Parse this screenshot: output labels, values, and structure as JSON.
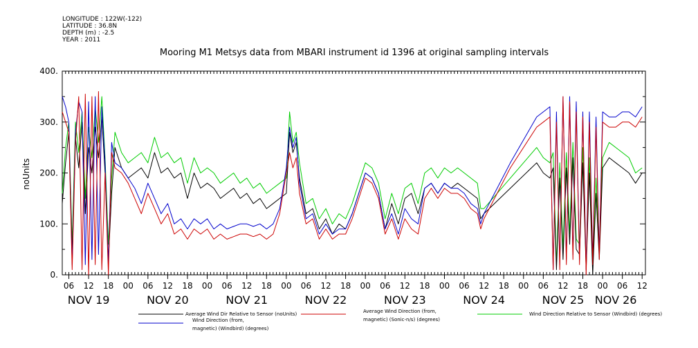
{
  "meta": {
    "longitude": "LONGITUDE : 122W(-122)",
    "latitude": "LATITUDE : 36.8N",
    "depth": "DEPTH (m) : -2.5",
    "year": "YEAR : 2011"
  },
  "chart_data": {
    "type": "line",
    "title": "Mooring M1 Metsys data from MBARI instrument id 1396 at original sampling intervals",
    "ylabel": "noUnits",
    "xlabel": "",
    "ylim": [
      0,
      400
    ],
    "yticks": [
      "0.",
      "100.",
      "200.",
      "300.",
      "400."
    ],
    "xlim": [
      4,
      181
    ],
    "hour_ticks": [
      {
        "t": 6,
        "label": "06"
      },
      {
        "t": 12,
        "label": "12"
      },
      {
        "t": 18,
        "label": "18"
      },
      {
        "t": 24,
        "label": "00"
      },
      {
        "t": 30,
        "label": "06"
      },
      {
        "t": 36,
        "label": "12"
      },
      {
        "t": 42,
        "label": "18"
      },
      {
        "t": 48,
        "label": "00"
      },
      {
        "t": 54,
        "label": "06"
      },
      {
        "t": 60,
        "label": "12"
      },
      {
        "t": 66,
        "label": "18"
      },
      {
        "t": 72,
        "label": "00"
      },
      {
        "t": 78,
        "label": "06"
      },
      {
        "t": 84,
        "label": "12"
      },
      {
        "t": 90,
        "label": "18"
      },
      {
        "t": 96,
        "label": "00"
      },
      {
        "t": 102,
        "label": "06"
      },
      {
        "t": 108,
        "label": "12"
      },
      {
        "t": 114,
        "label": "18"
      },
      {
        "t": 120,
        "label": "00"
      },
      {
        "t": 126,
        "label": "06"
      },
      {
        "t": 132,
        "label": "12"
      },
      {
        "t": 138,
        "label": "18"
      },
      {
        "t": 144,
        "label": "00"
      },
      {
        "t": 150,
        "label": "06"
      },
      {
        "t": 156,
        "label": "12"
      },
      {
        "t": 162,
        "label": "18"
      },
      {
        "t": 168,
        "label": "00"
      },
      {
        "t": 174,
        "label": "06"
      },
      {
        "t": 180,
        "label": "12"
      }
    ],
    "day_labels": [
      {
        "t": 12,
        "label": "NOV 19"
      },
      {
        "t": 36,
        "label": "NOV 20"
      },
      {
        "t": 60,
        "label": "NOV 21"
      },
      {
        "t": 84,
        "label": "NOV 22"
      },
      {
        "t": 108,
        "label": "NOV 23"
      },
      {
        "t": 132,
        "label": "NOV 24"
      },
      {
        "t": 156,
        "label": "NOV 25"
      },
      {
        "t": 172,
        "label": "NOV 26"
      }
    ],
    "series": [
      {
        "name": "Average Wind Dir Relative to Sensor (noUnits)",
        "color": "#000000",
        "x": [
          4,
          5,
          6,
          7,
          8,
          9,
          10,
          11,
          12,
          13,
          14,
          15,
          16,
          17,
          18,
          19,
          20,
          22,
          24,
          26,
          28,
          30,
          32,
          34,
          36,
          38,
          40,
          42,
          44,
          46,
          48,
          50,
          52,
          54,
          56,
          58,
          60,
          62,
          64,
          66,
          68,
          70,
          72,
          73,
          74,
          75,
          76,
          78,
          80,
          82,
          84,
          86,
          88,
          90,
          92,
          94,
          96,
          98,
          100,
          102,
          104,
          106,
          108,
          110,
          112,
          114,
          116,
          118,
          120,
          122,
          124,
          126,
          128,
          130,
          131,
          132,
          140,
          148,
          150,
          152,
          153,
          154,
          155,
          156,
          157,
          158,
          159,
          160,
          161,
          162,
          163,
          164,
          165,
          166,
          167,
          168,
          170,
          172,
          174,
          176,
          178,
          180
        ],
        "y": [
          140,
          220,
          280,
          40,
          270,
          210,
          300,
          120,
          250,
          200,
          290,
          230,
          310,
          200,
          30,
          160,
          250,
          210,
          190,
          200,
          210,
          190,
          240,
          200,
          210,
          190,
          200,
          150,
          200,
          170,
          180,
          170,
          150,
          160,
          170,
          150,
          160,
          140,
          150,
          130,
          140,
          150,
          160,
          280,
          240,
          260,
          190,
          120,
          130,
          90,
          110,
          80,
          100,
          90,
          120,
          160,
          200,
          190,
          160,
          90,
          140,
          100,
          150,
          160,
          120,
          170,
          180,
          160,
          180,
          170,
          180,
          170,
          160,
          150,
          110,
          120,
          170,
          220,
          200,
          190,
          210,
          10,
          190,
          30,
          210,
          60,
          230,
          50,
          40,
          220,
          10,
          200,
          0,
          160,
          30,
          210,
          230,
          220,
          210,
          200,
          180,
          200
        ]
      },
      {
        "name": "Average Wind Direction (from, magnetic) (Sonic-n/s) (degrees)",
        "color": "#cc0000",
        "x": [
          4,
          5,
          6,
          7,
          8,
          9,
          10,
          11,
          12,
          13,
          14,
          15,
          16,
          17,
          18,
          19,
          20,
          22,
          24,
          26,
          28,
          30,
          32,
          34,
          36,
          38,
          40,
          42,
          44,
          46,
          48,
          50,
          52,
          54,
          56,
          58,
          60,
          62,
          64,
          66,
          68,
          70,
          72,
          73,
          74,
          75,
          76,
          78,
          80,
          82,
          84,
          86,
          88,
          90,
          92,
          94,
          96,
          98,
          100,
          102,
          104,
          106,
          108,
          110,
          112,
          114,
          116,
          118,
          120,
          122,
          124,
          126,
          128,
          130,
          131,
          132,
          140,
          148,
          150,
          152,
          153,
          154,
          155,
          156,
          157,
          158,
          159,
          160,
          161,
          162,
          163,
          164,
          165,
          166,
          167,
          168,
          170,
          172,
          174,
          176,
          178,
          180
        ],
        "y": [
          320,
          300,
          280,
          10,
          260,
          350,
          10,
          355,
          0,
          350,
          20,
          360,
          10,
          200,
          0,
          240,
          210,
          200,
          180,
          150,
          120,
          160,
          130,
          100,
          120,
          80,
          90,
          70,
          90,
          80,
          90,
          70,
          80,
          70,
          75,
          80,
          80,
          75,
          80,
          70,
          80,
          120,
          200,
          240,
          210,
          230,
          160,
          100,
          110,
          70,
          90,
          70,
          80,
          80,
          110,
          150,
          190,
          180,
          150,
          80,
          110,
          70,
          110,
          90,
          80,
          150,
          170,
          150,
          170,
          160,
          160,
          150,
          130,
          120,
          90,
          110,
          210,
          290,
          300,
          310,
          10,
          300,
          10,
          350,
          20,
          340,
          30,
          320,
          20,
          310,
          0,
          300,
          20,
          290,
          30,
          300,
          290,
          290,
          300,
          300,
          290,
          310
        ]
      },
      {
        "name": "Wind Direction Relative to Sensor (Windbird) (degrees)",
        "color": "#00cc00",
        "x": [
          4,
          5,
          6,
          7,
          8,
          9,
          10,
          11,
          12,
          13,
          14,
          15,
          16,
          17,
          18,
          19,
          20,
          22,
          24,
          26,
          28,
          30,
          32,
          34,
          36,
          38,
          40,
          42,
          44,
          46,
          48,
          50,
          52,
          54,
          56,
          58,
          60,
          62,
          64,
          66,
          68,
          70,
          72,
          73,
          74,
          75,
          76,
          78,
          80,
          82,
          84,
          86,
          88,
          90,
          92,
          94,
          96,
          98,
          100,
          102,
          104,
          106,
          108,
          110,
          112,
          114,
          116,
          118,
          120,
          122,
          124,
          126,
          128,
          130,
          131,
          132,
          140,
          148,
          150,
          152,
          153,
          154,
          155,
          156,
          157,
          158,
          159,
          160,
          161,
          162,
          163,
          164,
          165,
          166,
          167,
          168,
          170,
          172,
          174,
          176,
          178,
          180
        ],
        "y": [
          160,
          250,
          300,
          60,
          300,
          240,
          320,
          150,
          290,
          230,
          330,
          260,
          350,
          230,
          60,
          190,
          280,
          240,
          220,
          230,
          240,
          220,
          270,
          230,
          240,
          220,
          230,
          180,
          230,
          200,
          210,
          200,
          180,
          190,
          200,
          180,
          190,
          170,
          180,
          160,
          170,
          180,
          190,
          320,
          260,
          280,
          220,
          140,
          150,
          110,
          130,
          100,
          120,
          110,
          140,
          180,
          220,
          210,
          180,
          110,
          160,
          120,
          170,
          180,
          140,
          200,
          210,
          190,
          210,
          200,
          210,
          200,
          190,
          180,
          130,
          130,
          190,
          250,
          230,
          220,
          240,
          20,
          220,
          50,
          240,
          80,
          260,
          70,
          60,
          250,
          20,
          230,
          10,
          190,
          50,
          230,
          260,
          250,
          240,
          230,
          200,
          210
        ]
      },
      {
        "name": "Wind Direction (from, magnetic) (Windbird) (degrees)",
        "color": "#0000cc",
        "x": [
          4,
          5,
          6,
          7,
          8,
          9,
          10,
          11,
          12,
          13,
          14,
          15,
          16,
          17,
          18,
          19,
          20,
          22,
          24,
          26,
          28,
          30,
          32,
          34,
          36,
          38,
          40,
          42,
          44,
          46,
          48,
          50,
          52,
          54,
          56,
          58,
          60,
          62,
          64,
          66,
          68,
          70,
          72,
          73,
          74,
          75,
          76,
          78,
          80,
          82,
          84,
          86,
          88,
          90,
          92,
          94,
          96,
          98,
          100,
          102,
          104,
          106,
          108,
          110,
          112,
          114,
          116,
          118,
          120,
          122,
          124,
          126,
          128,
          130,
          131,
          132,
          140,
          148,
          150,
          152,
          153,
          154,
          155,
          156,
          157,
          158,
          159,
          160,
          161,
          162,
          163,
          164,
          165,
          166,
          167,
          168,
          170,
          172,
          174,
          176,
          178,
          180
        ],
        "y": [
          350,
          330,
          300,
          20,
          280,
          340,
          320,
          20,
          340,
          30,
          350,
          40,
          330,
          220,
          20,
          260,
          220,
          210,
          190,
          170,
          140,
          180,
          150,
          120,
          140,
          100,
          110,
          90,
          110,
          100,
          110,
          90,
          100,
          90,
          95,
          100,
          100,
          95,
          100,
          90,
          100,
          130,
          210,
          290,
          250,
          270,
          180,
          110,
          120,
          80,
          100,
          80,
          90,
          90,
          120,
          160,
          200,
          190,
          160,
          90,
          120,
          80,
          130,
          110,
          100,
          170,
          180,
          160,
          180,
          170,
          170,
          160,
          140,
          130,
          100,
          120,
          220,
          310,
          320,
          330,
          10,
          320,
          20,
          350,
          30,
          350,
          40,
          340,
          30,
          320,
          10,
          320,
          30,
          310,
          40,
          320,
          310,
          310,
          320,
          320,
          310,
          330
        ]
      }
    ]
  }
}
